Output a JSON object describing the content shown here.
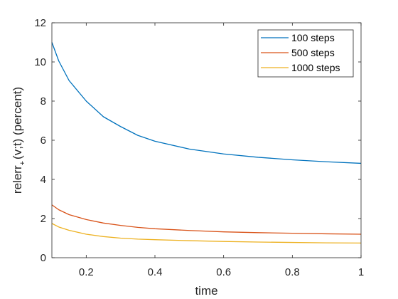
{
  "chart_data": {
    "type": "line",
    "title": "",
    "xlabel": "time",
    "ylabel_main": "relerr",
    "ylabel_sub": "+",
    "ylabel_rest": "(v;t) (percent)",
    "xlim": [
      0.1,
      1
    ],
    "ylim": [
      0,
      12
    ],
    "xticks": [
      0.2,
      0.4,
      0.6,
      0.8,
      1
    ],
    "xtick_labels": [
      "0.2",
      "0.4",
      "0.6",
      "0.8",
      "1"
    ],
    "yticks": [
      0,
      2,
      4,
      6,
      8,
      10,
      12
    ],
    "ytick_labels": [
      "0",
      "2",
      "4",
      "6",
      "8",
      "10",
      "12"
    ],
    "grid": false,
    "legend_position": "top-right",
    "x": [
      0.1,
      0.12,
      0.15,
      0.2,
      0.25,
      0.3,
      0.35,
      0.4,
      0.5,
      0.6,
      0.7,
      0.8,
      0.9,
      1.0
    ],
    "series": [
      {
        "name": "100 steps",
        "color": "#0072BD",
        "values": [
          11.0,
          10.05,
          9.05,
          8.0,
          7.2,
          6.7,
          6.25,
          5.95,
          5.55,
          5.3,
          5.13,
          5.0,
          4.9,
          4.82
        ]
      },
      {
        "name": "500 steps",
        "color": "#D95319",
        "values": [
          2.7,
          2.45,
          2.2,
          1.95,
          1.77,
          1.65,
          1.55,
          1.48,
          1.39,
          1.32,
          1.28,
          1.25,
          1.22,
          1.2
        ]
      },
      {
        "name": "1000 steps",
        "color": "#EDB120",
        "values": [
          1.75,
          1.57,
          1.4,
          1.2,
          1.08,
          1.0,
          0.95,
          0.92,
          0.87,
          0.83,
          0.8,
          0.78,
          0.76,
          0.75
        ]
      }
    ]
  }
}
